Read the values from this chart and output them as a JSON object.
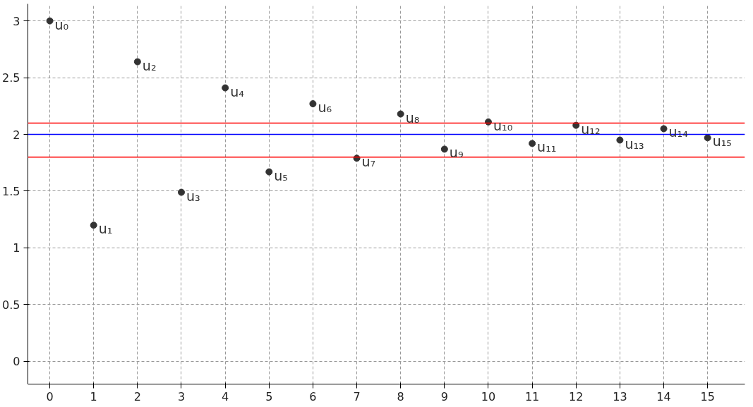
{
  "chart_data": {
    "type": "scatter",
    "x": [
      0,
      1,
      2,
      3,
      4,
      5,
      6,
      7,
      8,
      9,
      10,
      11,
      12,
      13,
      14,
      15
    ],
    "series": [
      {
        "color": "#333333",
        "values": [
          3,
          1.2,
          2.64,
          1.49,
          2.41,
          1.67,
          2.27,
          1.79,
          2.18,
          1.87,
          2.11,
          1.92,
          2.08,
          1.95,
          2.05,
          1.97
        ]
      }
    ],
    "annotations": [
      {
        "text": "u₀",
        "x": 0,
        "y": 3
      },
      {
        "text": "u₁",
        "x": 1,
        "y": 1.2
      },
      {
        "text": "u₂",
        "x": 2,
        "y": 2.64
      },
      {
        "text": "u₃",
        "x": 3,
        "y": 1.49
      },
      {
        "text": "u₄",
        "x": 4,
        "y": 2.41
      },
      {
        "text": "u₅",
        "x": 5,
        "y": 1.67
      },
      {
        "text": "u₆",
        "x": 6,
        "y": 2.27
      },
      {
        "text": "u₇",
        "x": 7,
        "y": 1.79
      },
      {
        "text": "u₈",
        "x": 8,
        "y": 2.18
      },
      {
        "text": "u₉",
        "x": 9,
        "y": 1.87
      },
      {
        "text": "u₁₀",
        "x": 10,
        "y": 2.11
      },
      {
        "text": "u₁₁",
        "x": 11,
        "y": 1.92
      },
      {
        "text": "u₁₂",
        "x": 12,
        "y": 2.08
      },
      {
        "text": "u₁₃",
        "x": 13,
        "y": 1.95
      },
      {
        "text": "u₁₄",
        "x": 14,
        "y": 2.05
      },
      {
        "text": "u₁₅",
        "x": 15,
        "y": 1.97
      }
    ],
    "ref_lines": [
      {
        "axis": "y",
        "value": 2.1,
        "color": "#ff0000"
      },
      {
        "axis": "y",
        "value": 2,
        "color": "#0000ff"
      },
      {
        "axis": "y",
        "value": 1.8,
        "color": "#ff0000"
      }
    ],
    "xlim": [
      -0.5,
      15.85
    ],
    "ylim": [
      -0.2,
      3.15
    ],
    "xticks": [
      0,
      1,
      2,
      3,
      4,
      5,
      6,
      7,
      8,
      9,
      10,
      11,
      12,
      13,
      14,
      15
    ],
    "yticks": [
      0,
      0.5,
      1,
      1.5,
      2,
      2.5,
      3
    ],
    "grid": true,
    "marker": "circle"
  }
}
